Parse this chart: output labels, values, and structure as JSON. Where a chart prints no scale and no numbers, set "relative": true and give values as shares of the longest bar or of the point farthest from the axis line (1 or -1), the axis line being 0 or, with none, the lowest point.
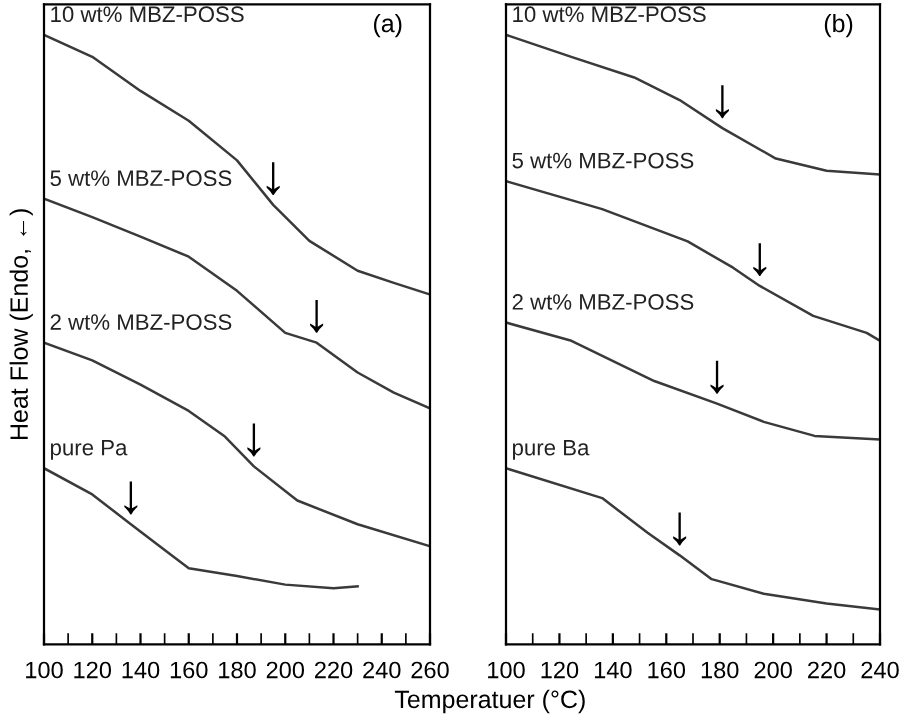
{
  "chart_data": [
    {
      "type": "line",
      "relative": true,
      "ylabel": "Heat Flow (Endo, ←)",
      "color": "#000000",
      "xlim": [
        100,
        260
      ],
      "xticks": [
        100,
        {
          "value": 110,
          "label": null
        },
        120,
        {
          "value": 130,
          "label": null
        },
        140,
        {
          "value": 150,
          "label": null
        },
        160,
        {
          "value": 170,
          "label": null
        },
        180,
        {
          "value": 190,
          "label": null
        },
        200,
        {
          "value": 210,
          "label": null
        },
        220,
        {
          "value": 230,
          "label": null
        },
        240,
        {
          "value": 250,
          "label": null
        },
        260
      ],
      "grid": false,
      "legend": false,
      "marker": "none",
      "line_style": "solid",
      "tick_labels": "x",
      "series": [
        {
          "name": "10 wt% MBZ-POSS",
          "color": "#3a3a3a",
          "x": [
            100,
            120,
            140,
            160,
            180,
            195,
            210,
            230,
            245,
            260
          ],
          "values": [
            1.0,
            0.964,
            0.908,
            0.859,
            0.794,
            0.721,
            0.662,
            0.613,
            0.593,
            0.574
          ]
        },
        {
          "name": "5 wt% MBZ-POSS",
          "color": "#3a3a3a",
          "x": [
            100,
            120,
            140,
            160,
            180,
            200,
            213,
            230,
            245,
            260
          ],
          "values": [
            0.731,
            0.701,
            0.669,
            0.636,
            0.58,
            0.511,
            0.495,
            0.446,
            0.413,
            0.387
          ]
        },
        {
          "name": "2 wt% MBZ-POSS",
          "color": "#3a3a3a",
          "x": [
            100,
            120,
            140,
            160,
            175,
            187,
            205,
            230,
            260
          ],
          "values": [
            0.495,
            0.466,
            0.426,
            0.383,
            0.341,
            0.292,
            0.236,
            0.197,
            0.161
          ]
        },
        {
          "name": "pure Pa",
          "color": "#3a3a3a",
          "x": [
            100,
            120,
            136,
            150,
            160,
            180,
            200,
            220,
            230
          ],
          "values": [
            0.289,
            0.246,
            0.197,
            0.155,
            0.125,
            0.112,
            0.098,
            0.092,
            0.095
          ]
        }
      ],
      "annotations": [
        "(a)",
        {
          "text": "↓",
          "x": 195,
          "y": 0.721
        },
        {
          "text": "↓",
          "x": 213,
          "y": 0.495
        },
        {
          "text": "↓",
          "x": 187,
          "y": 0.292
        },
        {
          "text": "↓",
          "x": 136,
          "y": 0.197
        }
      ]
    },
    {
      "type": "line",
      "relative": true,
      "xlabel": "Temperatuer (°C)",
      "color": "#000000",
      "xlim": [
        100,
        240
      ],
      "xticks": [
        100,
        {
          "value": 110,
          "label": null
        },
        120,
        {
          "value": 130,
          "label": null
        },
        140,
        {
          "value": 150,
          "label": null
        },
        160,
        {
          "value": 170,
          "label": null
        },
        180,
        {
          "value": 190,
          "label": null
        },
        200,
        {
          "value": 210,
          "label": null
        },
        220,
        {
          "value": 230,
          "label": null
        },
        240
      ],
      "grid": false,
      "legend": false,
      "marker": "none",
      "line_style": "solid",
      "tick_labels": "x",
      "series": [
        {
          "name": "10 wt% MBZ-POSS",
          "color": "#3a3a3a",
          "x": [
            100,
            125,
            148,
            165,
            181,
            201,
            220,
            240
          ],
          "values": [
            1.0,
            0.963,
            0.93,
            0.893,
            0.847,
            0.797,
            0.777,
            0.771
          ]
        },
        {
          "name": "5 wt% MBZ-POSS",
          "color": "#3a3a3a",
          "x": [
            100,
            136,
            168,
            185,
            195,
            215,
            235,
            240
          ],
          "values": [
            0.76,
            0.714,
            0.661,
            0.618,
            0.588,
            0.539,
            0.511,
            0.498
          ]
        },
        {
          "name": "2 wt% MBZ-POSS",
          "color": "#3a3a3a",
          "x": [
            100,
            124.5,
            155.5,
            179,
            196.5,
            215.5,
            240
          ],
          "values": [
            0.528,
            0.498,
            0.432,
            0.395,
            0.365,
            0.342,
            0.336
          ]
        },
        {
          "name": "pure Ba",
          "color": "#3a3a3a",
          "x": [
            100,
            136,
            153,
            165,
            177,
            196.5,
            220,
            240
          ],
          "values": [
            0.289,
            0.24,
            0.183,
            0.146,
            0.107,
            0.083,
            0.067,
            0.057
          ]
        }
      ],
      "annotations": [
        "(b)",
        {
          "text": "↓",
          "x": 181,
          "y": 0.847
        },
        {
          "text": "↓",
          "x": 195,
          "y": 0.588
        },
        {
          "text": "↓",
          "x": 179,
          "y": 0.395
        },
        {
          "text": "↓",
          "x": 165,
          "y": 0.146
        }
      ]
    }
  ]
}
